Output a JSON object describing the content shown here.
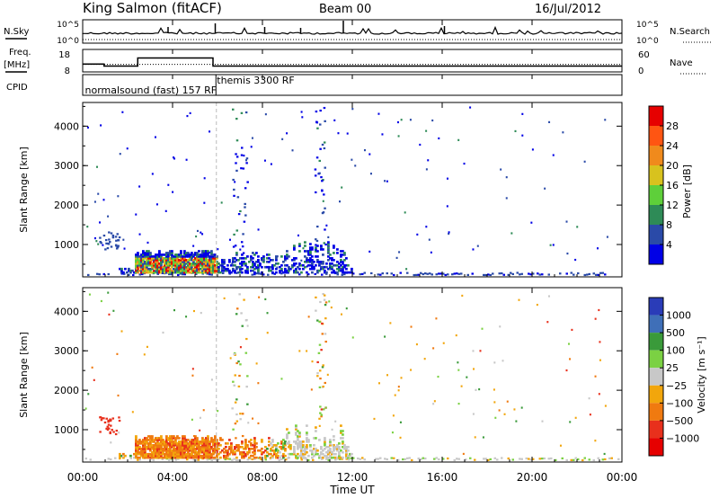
{
  "header": {
    "station": "King Salmon (fitACF)",
    "beam": "Beam 00",
    "date": "16/Jul/2012"
  },
  "aux_labels": {
    "nsky": "N.Sky",
    "nsearch": "N.Search",
    "freq_line1": "Freq.",
    "freq_line2": "[MHz]",
    "cpid": "CPID",
    "nave": "Nave"
  },
  "chart_data": [
    {
      "type": "line",
      "panel": "noise",
      "left_axis": {
        "label": "N.Sky",
        "ticks": [
          "10^5",
          "10^0"
        ]
      },
      "right_axis": {
        "label": "N.Search",
        "ticks": [
          "10^5",
          "10^0"
        ]
      }
    },
    {
      "type": "line",
      "panel": "frequency_nave",
      "left_axis": {
        "label": "Freq. [MHz]",
        "ticks": [
          18,
          8
        ],
        "ylim": [
          8,
          18
        ]
      },
      "right_axis": {
        "label": "Nave",
        "ticks": [
          60,
          0
        ],
        "ylim": [
          0,
          60
        ]
      },
      "freq_steps": [
        {
          "t": 0.0,
          "f": 11.5
        },
        {
          "t": 0.95,
          "f": 10.6
        },
        {
          "t": 2.45,
          "f": 14.2
        },
        {
          "t": 5.8,
          "f": 10.6
        },
        {
          "t": 24.0,
          "f": 10.6
        }
      ],
      "nave_level": 20
    },
    {
      "type": "table",
      "panel": "cpid",
      "entries": [
        {
          "t": 0.1,
          "label": "normalsound (fast) 157 RF"
        },
        {
          "t": 6.05,
          "label": "themis 3300 RF"
        }
      ]
    },
    {
      "type": "heatmap",
      "panel": "power",
      "ylabel": "Slant Range [km]",
      "yticks": [
        1000,
        2000,
        3000,
        4000
      ],
      "ylim": [
        180,
        4600
      ],
      "xlim": [
        0,
        24
      ],
      "colorbar": {
        "label": "Power [dB]",
        "ticks": [
          4,
          8,
          12,
          16,
          20,
          24,
          28
        ]
      },
      "colors": [
        "#0000e6",
        "#2a4aa8",
        "#2e8b57",
        "#5ecf3a",
        "#d8c21e",
        "#f08a1c",
        "#ff5512",
        "#e60000"
      ]
    },
    {
      "type": "heatmap",
      "panel": "velocity",
      "ylabel": "Slant Range [km]",
      "xlabel": "Time UT",
      "yticks": [
        1000,
        2000,
        3000,
        4000
      ],
      "ylim": [
        180,
        4600
      ],
      "xlim": [
        0,
        24
      ],
      "xticks": [
        "00:00",
        "04:00",
        "08:00",
        "12:00",
        "16:00",
        "20:00",
        "00:00"
      ],
      "colorbar": {
        "label": "Velocity [m s⁻¹]",
        "ticks": [
          "1000",
          "500",
          "100",
          "25",
          "−25",
          "−100",
          "−500",
          "−1000"
        ]
      },
      "colors": [
        "#2a3cb8",
        "#3f6fb8",
        "#3a9a3a",
        "#7bd143",
        "#c8c8c8",
        "#f2a60c",
        "#f07a10",
        "#e8301c",
        "#e60000"
      ]
    }
  ]
}
